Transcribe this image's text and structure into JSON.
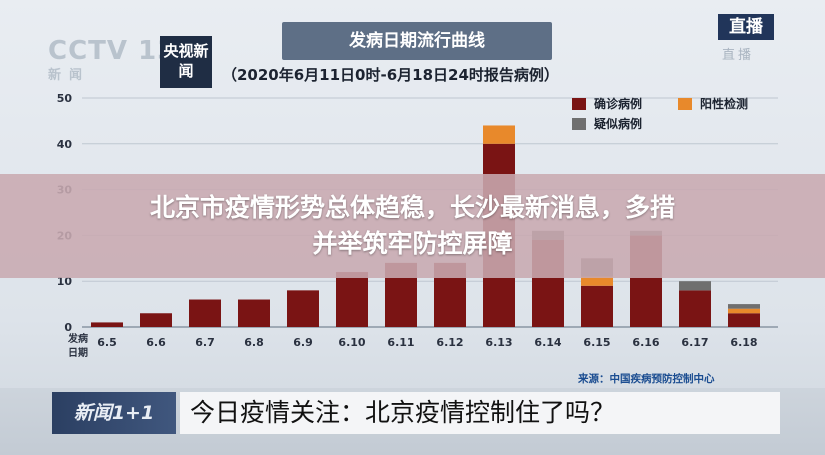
{
  "header": {
    "logo_text": "CCTV 13",
    "logo_sub": "新闻",
    "channel_badge": "央视新闻",
    "live_badge": "直播",
    "live_ghost": "直播",
    "chart_title": "发病日期流行曲线",
    "chart_subtitle": "（2020年6月11日0时-6月18日24时报告病例）"
  },
  "chart_data": {
    "type": "bar",
    "stacked": true,
    "title": "发病日期流行曲线",
    "subtitle": "（2020年6月11日0时-6月18日24时报告病例）",
    "xlabel": "发病日期",
    "ylabel": "",
    "ylim": [
      0,
      50
    ],
    "yticks": [
      0,
      10,
      20,
      30,
      40,
      50
    ],
    "grid": true,
    "legend_position": "top-right",
    "categories": [
      "6.5",
      "6.6",
      "6.7",
      "6.8",
      "6.9",
      "6.10",
      "6.11",
      "6.12",
      "6.13",
      "6.14",
      "6.15",
      "6.16",
      "6.17",
      "6.18"
    ],
    "series": [
      {
        "name": "确诊病例",
        "color": "#7a1414",
        "values": [
          1,
          3,
          6,
          6,
          8,
          12,
          14,
          14,
          40,
          19,
          9,
          20,
          8,
          3
        ]
      },
      {
        "name": "阳性检测",
        "color": "#e8892b",
        "values": [
          0,
          0,
          0,
          0,
          0,
          0,
          0,
          0,
          4,
          0,
          2,
          0,
          0,
          1
        ]
      },
      {
        "name": "疑似病例",
        "color": "#6f6f6f",
        "values": [
          0,
          0,
          0,
          0,
          0,
          0,
          0,
          0,
          0,
          2,
          4,
          1,
          2,
          1
        ]
      }
    ],
    "source": "来源：中国疾病预防控制中心"
  },
  "overlay": {
    "banner_line1": "北京市疫情形势总体趋稳，长沙最新消息，多措",
    "banner_line2": "并举筑牢防控屏障"
  },
  "lower_third": {
    "tag": "新闻1+1",
    "headline": "今日疫情关注：北京疫情控制住了吗？"
  }
}
